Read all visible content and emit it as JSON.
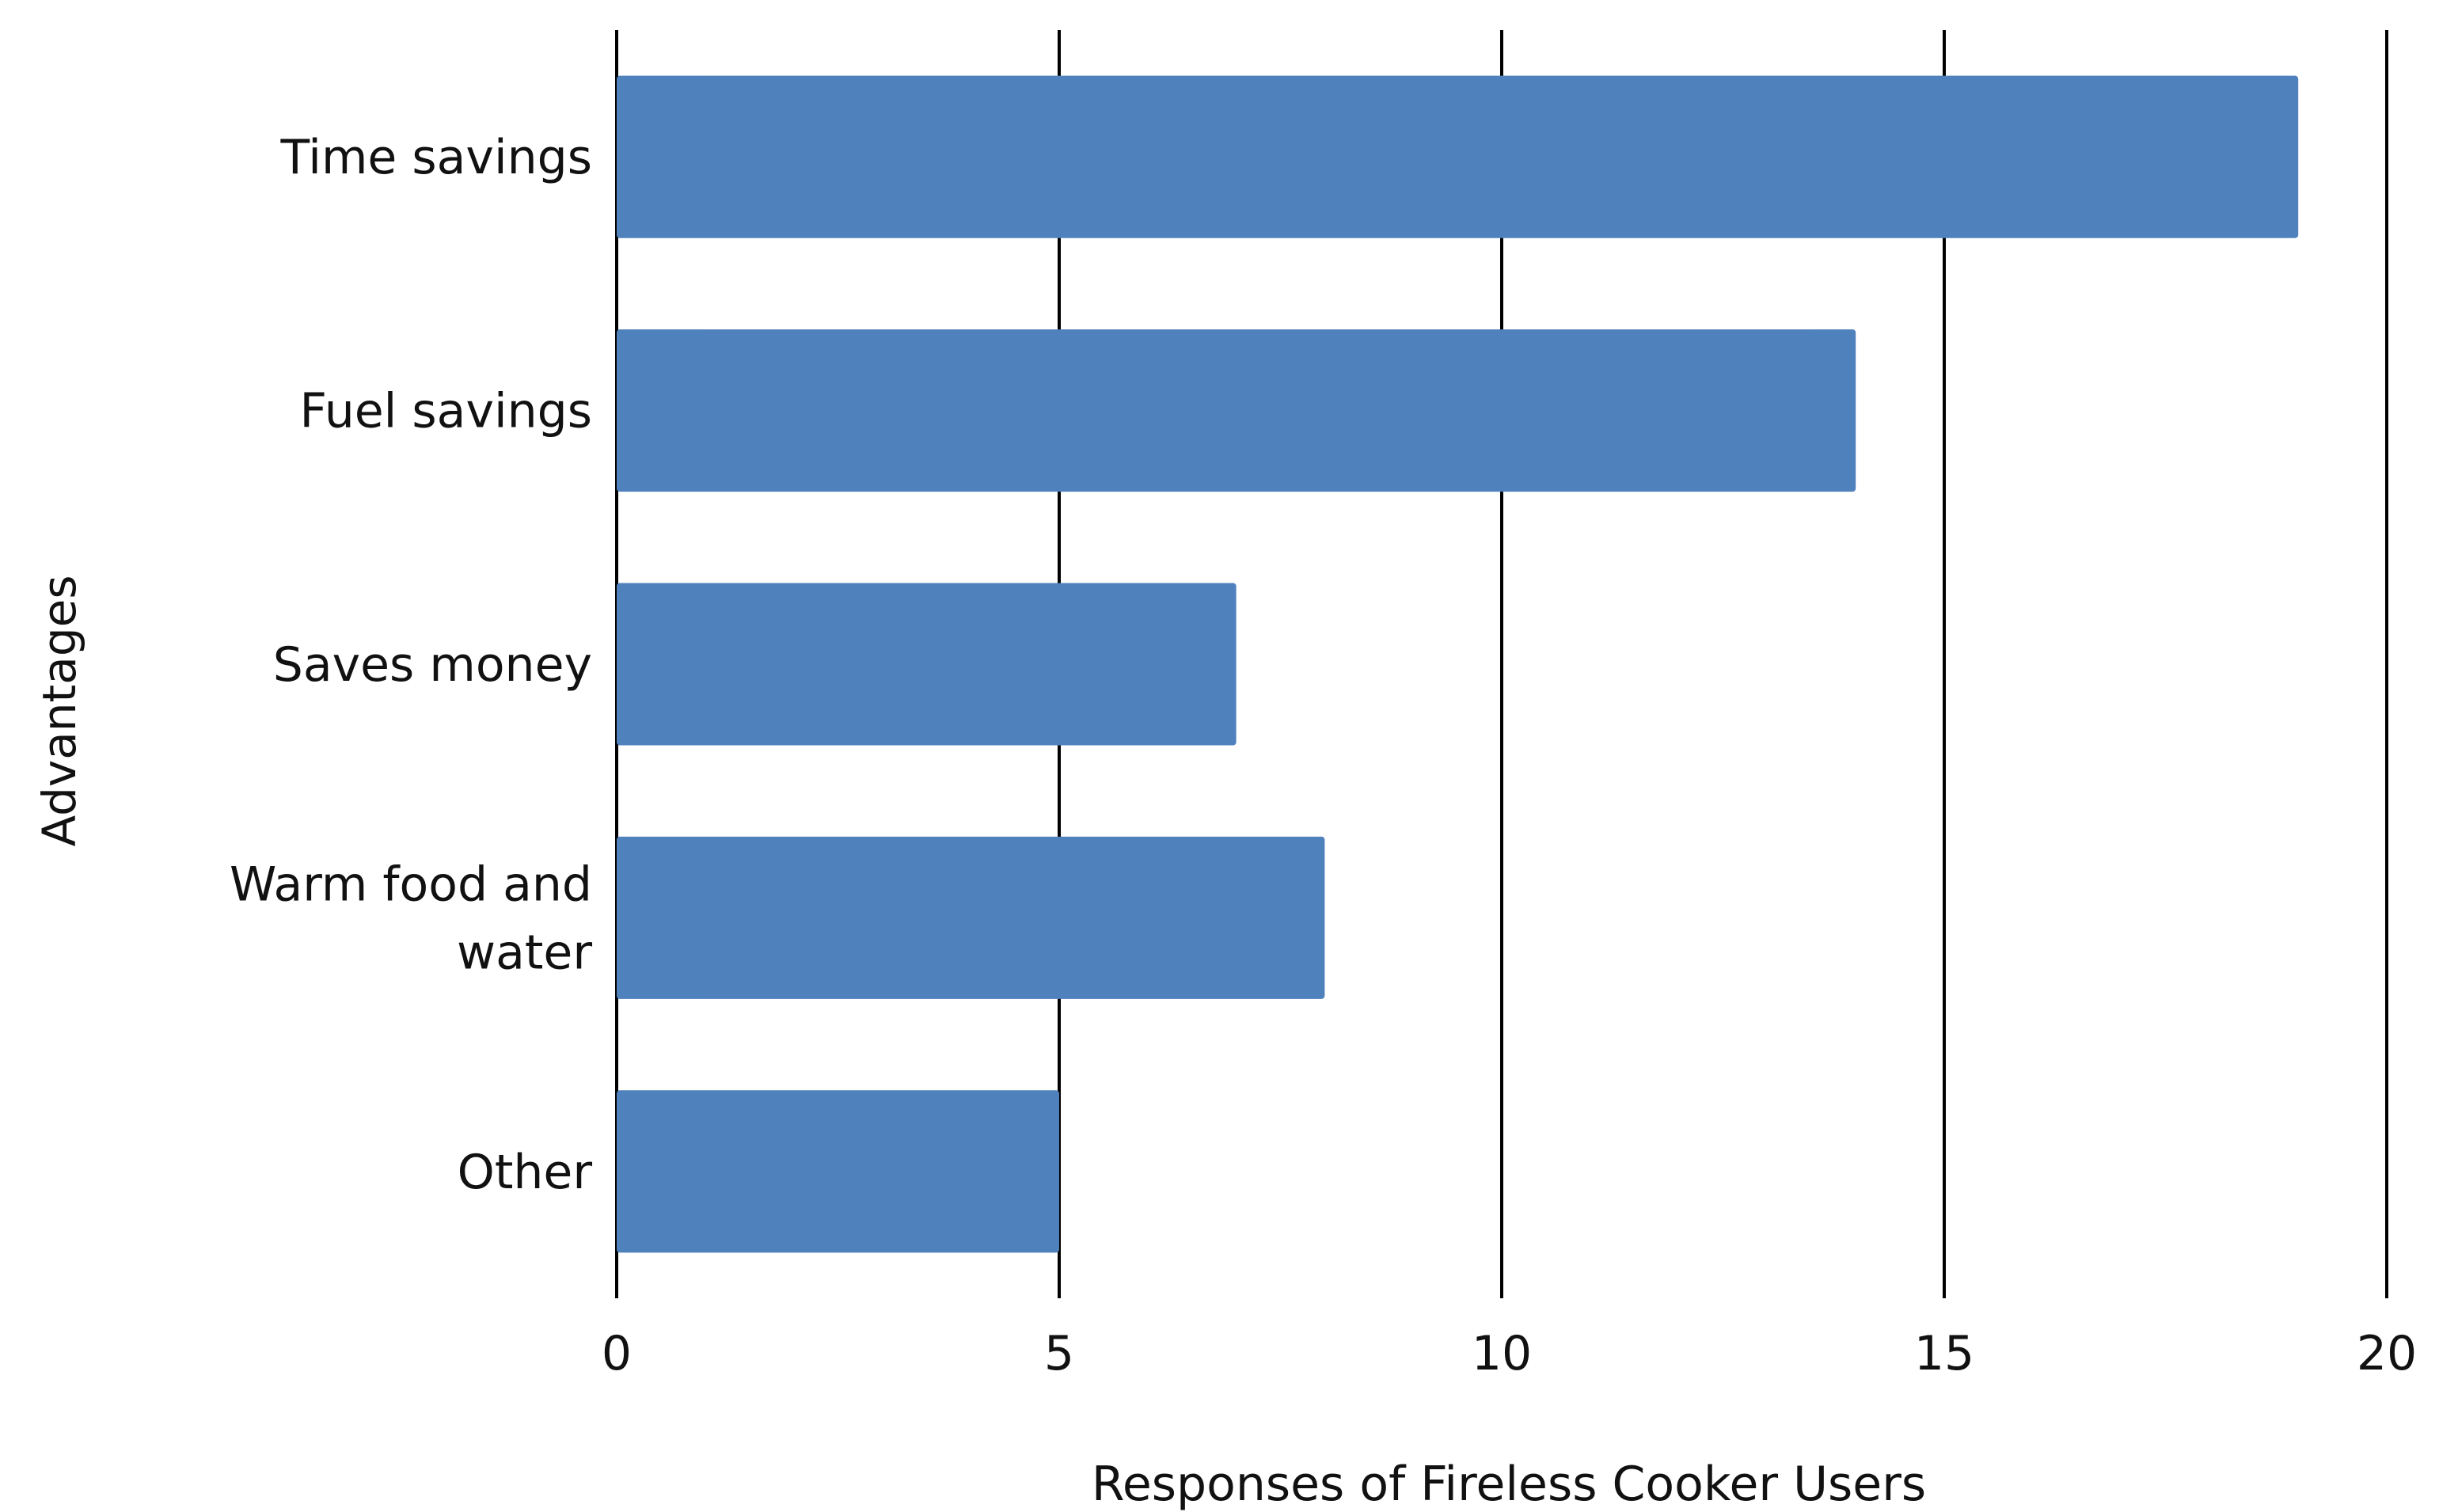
{
  "chart_data": {
    "type": "bar",
    "orientation": "horizontal",
    "categories": [
      "Time savings",
      "Fuel savings",
      "Saves money",
      "Warm food and water",
      "Other"
    ],
    "category_lines": [
      [
        "Time savings"
      ],
      [
        "Fuel savings"
      ],
      [
        "Saves money"
      ],
      [
        "Warm food and",
        "water"
      ],
      [
        "Other"
      ]
    ],
    "values": [
      19,
      14,
      7,
      8,
      5
    ],
    "title": "",
    "xlabel": "Responses of Fireless Cooker Users",
    "ylabel": "Advantages",
    "xlim": [
      0,
      20
    ],
    "xticks": [
      0,
      5,
      10,
      15,
      20
    ],
    "grid": "vertical",
    "legend": "none",
    "bar_color": "#4f81bd",
    "grid_color": "#000000"
  }
}
